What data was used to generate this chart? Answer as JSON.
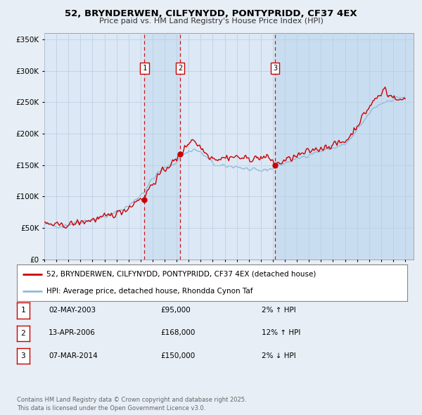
{
  "title": "52, BRYNDERWEN, CILFYNYDD, PONTYPRIDD, CF37 4EX",
  "subtitle": "Price paid vs. HM Land Registry's House Price Index (HPI)",
  "background_color": "#e8eef5",
  "plot_bg_color": "#dce8f5",
  "grid_color": "#b8cce0",
  "ylim": [
    0,
    360000
  ],
  "yticks": [
    0,
    50000,
    100000,
    150000,
    200000,
    250000,
    300000,
    350000
  ],
  "ytick_labels": [
    "£0",
    "£50K",
    "£100K",
    "£150K",
    "£200K",
    "£250K",
    "£300K",
    "£350K"
  ],
  "xlim_start": 1995.0,
  "xlim_end": 2025.7,
  "sale_dates": [
    2003.33,
    2006.28,
    2014.18
  ],
  "sale_prices": [
    95000,
    168000,
    150000
  ],
  "sale_labels": [
    "1",
    "2",
    "3"
  ],
  "legend_line1": "52, BRYNDERWEN, CILFYNYDD, PONTYPRIDD, CF37 4EX (detached house)",
  "legend_line2": "HPI: Average price, detached house, Rhondda Cynon Taf",
  "table_rows": [
    [
      "1",
      "02-MAY-2003",
      "£95,000",
      "2% ↑ HPI"
    ],
    [
      "2",
      "13-APR-2006",
      "£168,000",
      "12% ↑ HPI"
    ],
    [
      "3",
      "07-MAR-2014",
      "£150,000",
      "2% ↓ HPI"
    ]
  ],
  "footer_text": "Contains HM Land Registry data © Crown copyright and database right 2025.\nThis data is licensed under the Open Government Licence v3.0.",
  "red_line_color": "#cc0000",
  "blue_line_color": "#90bcd8",
  "vline_color": "#cc0000",
  "shade_color": "#c8ddf0"
}
